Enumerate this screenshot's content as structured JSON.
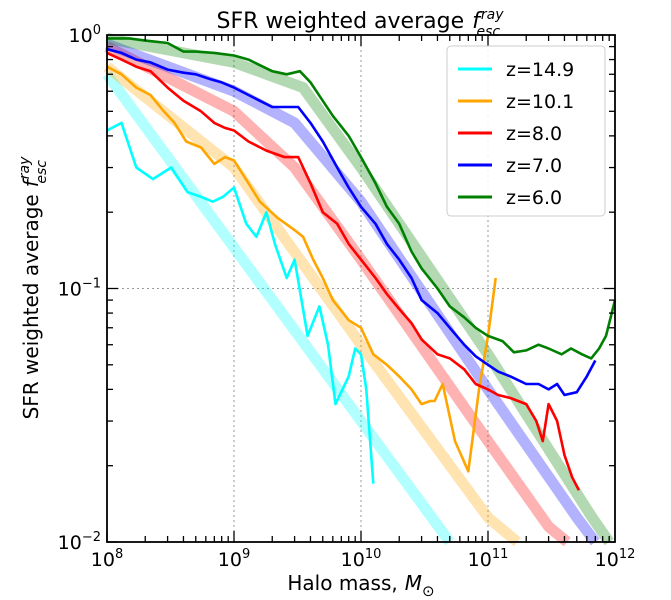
{
  "chart_data": {
    "type": "line",
    "title": "SFR weighted average",
    "title_symbol": {
      "base": "f",
      "sup": "ray",
      "sub": "esc"
    },
    "xlabel": "Halo mass,",
    "xlabel_symbol": {
      "base": "M",
      "sub": "⊙"
    },
    "ylabel": "SFR weighted average",
    "ylabel_symbol": {
      "base": "f",
      "sup": "ray",
      "sub": "esc"
    },
    "x_scale": "log",
    "y_scale": "log",
    "xlim": [
      100000000,
      1000000000000
    ],
    "ylim": [
      0.01,
      1.0
    ],
    "grid": {
      "style": "dotted",
      "color": "#999999",
      "x_at": [
        1000000000,
        10000000000,
        100000000000
      ],
      "y_at": [
        0.1
      ]
    },
    "legend_position": "top-right",
    "x_tick_labels": [
      {
        "value": 100000000,
        "base": "10",
        "exp": "8"
      },
      {
        "value": 1000000000,
        "base": "10",
        "exp": "9"
      },
      {
        "value": 10000000000,
        "base": "10",
        "exp": "10"
      },
      {
        "value": 100000000000,
        "base": "10",
        "exp": "11"
      },
      {
        "value": 1000000000000,
        "base": "10",
        "exp": "12"
      }
    ],
    "y_tick_labels": [
      {
        "value": 0.01,
        "base": "10",
        "exp": "−2"
      },
      {
        "value": 0.1,
        "base": "10",
        "exp": "−1"
      },
      {
        "value": 1.0,
        "base": "10",
        "exp": "0"
      }
    ],
    "series": [
      {
        "name": "z=14.9",
        "color": "#00ffff",
        "fit": {
          "x": [
            100000000,
            50000000000
          ],
          "y": [
            0.7,
            0.01
          ]
        },
        "x": [
          100000000,
          130000000,
          170000000,
          230000000,
          320000000,
          430000000,
          550000000,
          680000000,
          820000000,
          1000000000,
          1250000000,
          1500000000,
          1800000000,
          2100000000,
          2600000000,
          3000000000,
          3800000000,
          4700000000,
          5500000000,
          6300000000,
          8000000000,
          9000000000,
          10000000000,
          11000000000,
          12500000000
        ],
        "y": [
          0.42,
          0.45,
          0.3,
          0.27,
          0.3,
          0.24,
          0.23,
          0.22,
          0.23,
          0.25,
          0.18,
          0.16,
          0.2,
          0.15,
          0.11,
          0.13,
          0.065,
          0.085,
          0.06,
          0.035,
          0.045,
          0.058,
          0.055,
          0.04,
          0.017
        ]
      },
      {
        "name": "z=10.1",
        "color": "#ffa500",
        "fit": {
          "x": [
            100000000,
            1000000000,
            10000000000,
            100000000000,
            170000000000
          ],
          "y": [
            0.75,
            0.3,
            0.06,
            0.0125,
            0.01
          ]
        },
        "x": [
          100000000,
          130000000,
          170000000,
          220000000,
          280000000,
          340000000,
          420000000,
          550000000,
          700000000,
          850000000,
          1000000000,
          1300000000,
          1600000000,
          2200000000,
          3000000000,
          3500000000,
          4200000000,
          5000000000,
          6000000000,
          8000000000,
          10000000000,
          12500000000,
          16000000000,
          20000000000,
          25000000000,
          30000000000,
          35000000000,
          38000000000,
          44000000000,
          55000000000,
          70000000000,
          85000000000,
          100000000000,
          115000000000
        ],
        "y": [
          0.75,
          0.7,
          0.62,
          0.58,
          0.5,
          0.45,
          0.38,
          0.36,
          0.31,
          0.33,
          0.32,
          0.26,
          0.22,
          0.19,
          0.17,
          0.16,
          0.13,
          0.11,
          0.09,
          0.075,
          0.07,
          0.055,
          0.05,
          0.045,
          0.04,
          0.035,
          0.036,
          0.036,
          0.042,
          0.025,
          0.019,
          0.04,
          0.065,
          0.11
        ]
      },
      {
        "name": "z=8.0",
        "color": "#ff0000",
        "fit": {
          "x": [
            100000000,
            1000000000,
            3000000000,
            10000000000,
            100000000000,
            300000000000,
            420000000000
          ],
          "y": [
            0.9,
            0.5,
            0.3,
            0.13,
            0.025,
            0.0115,
            0.01
          ]
        },
        "x": [
          100000000,
          130000000,
          170000000,
          220000000,
          300000000,
          400000000,
          550000000,
          700000000,
          850000000,
          1000000000,
          1300000000,
          1800000000,
          2500000000,
          3200000000,
          4000000000,
          5000000000,
          6500000000,
          8000000000,
          10000000000,
          13000000000,
          16000000000,
          20000000000,
          25000000000,
          30000000000,
          40000000000,
          50000000000,
          65000000000,
          80000000000,
          100000000000,
          120000000000,
          150000000000,
          200000000000,
          240000000000,
          270000000000,
          300000000000,
          350000000000,
          400000000000,
          460000000000,
          520000000000
        ],
        "y": [
          0.85,
          0.8,
          0.75,
          0.72,
          0.62,
          0.55,
          0.5,
          0.45,
          0.43,
          0.42,
          0.38,
          0.35,
          0.33,
          0.33,
          0.26,
          0.2,
          0.18,
          0.15,
          0.13,
          0.11,
          0.095,
          0.083,
          0.073,
          0.063,
          0.055,
          0.053,
          0.048,
          0.042,
          0.04,
          0.038,
          0.037,
          0.035,
          0.03,
          0.025,
          0.035,
          0.03,
          0.022,
          0.018,
          0.016
        ]
      },
      {
        "name": "z=7.0",
        "color": "#0000ff",
        "fit": {
          "x": [
            100000000,
            1000000000,
            3000000000,
            10000000000,
            100000000000,
            500000000000,
            700000000000
          ],
          "y": [
            0.92,
            0.6,
            0.45,
            0.22,
            0.04,
            0.0125,
            0.01
          ]
        },
        "x": [
          100000000,
          130000000,
          170000000,
          220000000,
          300000000,
          400000000,
          500000000,
          650000000,
          800000000,
          1000000000,
          1300000000,
          1600000000,
          2000000000,
          2600000000,
          3200000000,
          4000000000,
          5000000000,
          6500000000,
          8000000000,
          10000000000,
          13000000000,
          16000000000,
          20000000000,
          25000000000,
          30000000000,
          40000000000,
          50000000000,
          65000000000,
          80000000000,
          100000000000,
          120000000000,
          150000000000,
          200000000000,
          250000000000,
          300000000000,
          350000000000,
          400000000000,
          500000000000,
          600000000000,
          700000000000
        ],
        "y": [
          0.88,
          0.85,
          0.8,
          0.78,
          0.73,
          0.71,
          0.7,
          0.67,
          0.65,
          0.62,
          0.58,
          0.55,
          0.52,
          0.52,
          0.52,
          0.45,
          0.38,
          0.3,
          0.25,
          0.21,
          0.18,
          0.15,
          0.13,
          0.11,
          0.09,
          0.08,
          0.07,
          0.06,
          0.054,
          0.05,
          0.047,
          0.045,
          0.042,
          0.042,
          0.04,
          0.042,
          0.038,
          0.039,
          0.045,
          0.052
        ]
      },
      {
        "name": "z=6.0",
        "color": "#008000",
        "fit": {
          "x": [
            100000000,
            1000000000,
            3500000000,
            10000000000,
            100000000000,
            660000000000,
            900000000000
          ],
          "y": [
            0.97,
            0.78,
            0.62,
            0.3,
            0.055,
            0.0125,
            0.01
          ]
        },
        "x": [
          100000000,
          150000000,
          200000000,
          300000000,
          400000000,
          500000000,
          700000000,
          1000000000,
          1300000000,
          1600000000,
          2000000000,
          2600000000,
          3300000000,
          4000000000,
          5000000000,
          6000000000,
          8000000000,
          10000000000,
          13000000000,
          16000000000,
          20000000000,
          25000000000,
          30000000000,
          40000000000,
          50000000000,
          65000000000,
          80000000000,
          100000000000,
          130000000000,
          160000000000,
          200000000000,
          250000000000,
          300000000000,
          380000000000,
          450000000000,
          550000000000,
          650000000000,
          750000000000,
          850000000000,
          1000000000000
        ],
        "y": [
          0.97,
          0.97,
          0.95,
          0.93,
          0.86,
          0.86,
          0.85,
          0.83,
          0.8,
          0.76,
          0.72,
          0.7,
          0.72,
          0.65,
          0.55,
          0.48,
          0.4,
          0.33,
          0.26,
          0.21,
          0.18,
          0.14,
          0.12,
          0.1,
          0.085,
          0.077,
          0.07,
          0.065,
          0.062,
          0.056,
          0.057,
          0.06,
          0.058,
          0.055,
          0.058,
          0.055,
          0.053,
          0.058,
          0.065,
          0.09
        ]
      }
    ]
  }
}
